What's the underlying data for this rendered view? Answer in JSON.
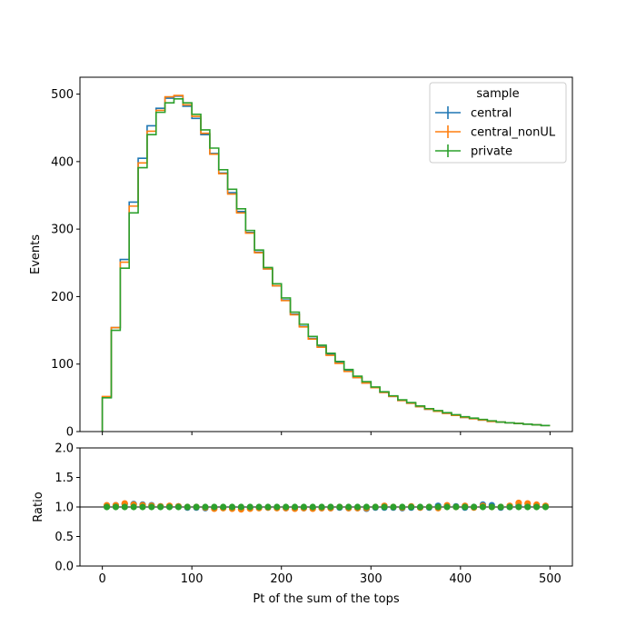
{
  "chart_data": [
    {
      "type": "step",
      "xlabel": "",
      "ylabel": "Events",
      "xlim": [
        -25,
        525
      ],
      "ylim": [
        0,
        525
      ],
      "x_ticks": [
        0,
        100,
        200,
        300,
        400,
        500
      ],
      "y_ticks": [
        0,
        100,
        200,
        300,
        400,
        500
      ],
      "x_tick_labels_shown": false,
      "bin_edges": [
        0,
        10,
        20,
        30,
        40,
        50,
        60,
        70,
        80,
        90,
        100,
        110,
        120,
        130,
        140,
        150,
        160,
        170,
        180,
        190,
        200,
        210,
        220,
        230,
        240,
        250,
        260,
        270,
        280,
        290,
        300,
        310,
        320,
        330,
        340,
        350,
        360,
        370,
        380,
        390,
        400,
        410,
        420,
        430,
        440,
        450,
        460,
        470,
        480,
        490,
        500
      ],
      "legend": {
        "title": "sample",
        "position": "top-right"
      },
      "series": [
        {
          "name": "central",
          "color": "#1f77b4",
          "values": [
            51,
            154,
            255,
            340,
            405,
            453,
            479,
            494,
            497,
            482,
            464,
            440,
            412,
            383,
            354,
            326,
            295,
            266,
            241,
            216,
            195,
            174,
            156,
            138,
            126,
            114,
            102,
            90,
            80,
            72,
            65,
            58,
            52,
            46,
            42,
            37,
            33,
            30,
            27,
            24,
            21,
            19,
            17,
            15,
            14,
            13,
            12,
            11,
            10,
            9
          ]
        },
        {
          "name": "central_nonUL",
          "color": "#ff7f0e",
          "values": [
            52,
            154,
            251,
            334,
            398,
            445,
            476,
            496,
            498,
            484,
            467,
            442,
            411,
            382,
            352,
            324,
            294,
            265,
            241,
            216,
            194,
            173,
            155,
            137,
            125,
            113,
            101,
            89,
            80,
            72,
            65,
            58,
            52,
            46,
            42,
            37,
            33,
            30,
            27,
            24,
            21,
            19,
            17,
            15,
            14,
            13,
            12,
            11,
            10,
            9
          ]
        },
        {
          "name": "private",
          "color": "#2ca02c",
          "values": [
            50,
            150,
            242,
            324,
            391,
            440,
            473,
            487,
            493,
            487,
            470,
            447,
            420,
            388,
            359,
            330,
            298,
            269,
            243,
            219,
            198,
            177,
            159,
            141,
            128,
            116,
            104,
            92,
            82,
            74,
            66,
            59,
            53,
            47,
            43,
            38,
            34,
            31,
            28,
            25,
            22,
            20,
            18,
            16,
            14,
            13,
            12,
            11,
            10,
            9
          ]
        }
      ]
    },
    {
      "type": "scatter",
      "xlabel": "Pt of the sum of the tops",
      "ylabel": "Ratio",
      "xlim": [
        -25,
        525
      ],
      "ylim": [
        0,
        2
      ],
      "x_ticks": [
        0,
        100,
        200,
        300,
        400,
        500
      ],
      "y_ticks": [
        0.0,
        0.5,
        1.0,
        1.5,
        2.0
      ],
      "y_tick_labels": [
        "0.0",
        "0.5",
        "1.0",
        "1.5",
        "2.0"
      ],
      "reference_line": 1.0,
      "x": [
        5,
        15,
        25,
        35,
        45,
        55,
        65,
        75,
        85,
        95,
        105,
        115,
        125,
        135,
        145,
        155,
        165,
        175,
        185,
        195,
        205,
        215,
        225,
        235,
        245,
        255,
        265,
        275,
        285,
        295,
        305,
        315,
        325,
        335,
        345,
        355,
        365,
        375,
        385,
        395,
        405,
        415,
        425,
        435,
        445,
        455,
        465,
        475,
        485,
        495
      ],
      "series": [
        {
          "name": "central",
          "color": "#1f77b4",
          "values": [
            1.02,
            1.03,
            1.05,
            1.05,
            1.04,
            1.03,
            1.01,
            1.01,
            1.01,
            0.99,
            0.99,
            0.98,
            0.98,
            0.99,
            0.99,
            0.99,
            0.99,
            0.99,
            0.99,
            0.99,
            0.98,
            0.98,
            0.98,
            0.98,
            0.98,
            0.98,
            0.99,
            0.98,
            0.98,
            0.97,
            0.99,
            0.99,
            0.99,
            0.98,
            0.99,
            0.99,
            0.99,
            1.02,
            1.02,
            1.01,
            0.99,
            1.0,
            1.04,
            1.03,
            0.99,
            1.0,
            1.02,
            1.01,
            1.02,
            1.01
          ]
        },
        {
          "name": "central_nonUL",
          "color": "#ff7f0e",
          "values": [
            1.03,
            1.03,
            1.06,
            1.04,
            1.03,
            1.02,
            1.01,
            1.02,
            1.01,
            1.0,
            1.0,
            0.99,
            0.97,
            0.98,
            0.97,
            0.96,
            0.97,
            0.98,
            0.99,
            0.98,
            0.98,
            0.97,
            0.98,
            0.97,
            0.98,
            0.98,
            1.0,
            0.98,
            0.98,
            0.98,
            1.0,
            1.02,
            1.0,
            0.99,
            1.01,
            0.99,
            1.0,
            0.98,
            1.03,
            1.0,
            1.02,
            0.99,
            1.02,
            1.0,
            1.0,
            1.02,
            1.07,
            1.06,
            1.04,
            1.02
          ]
        },
        {
          "name": "private",
          "color": "#2ca02c",
          "values": [
            1.0,
            1.0,
            1.0,
            1.0,
            1.0,
            1.0,
            1.0,
            1.0,
            1.0,
            1.0,
            1.0,
            1.0,
            1.0,
            1.0,
            1.0,
            1.0,
            1.0,
            1.0,
            1.0,
            1.0,
            1.0,
            1.0,
            1.0,
            1.0,
            1.0,
            1.0,
            1.0,
            1.0,
            1.0,
            1.0,
            1.0,
            1.0,
            1.0,
            1.0,
            1.0,
            1.0,
            1.0,
            1.0,
            1.0,
            1.0,
            1.0,
            1.0,
            1.0,
            1.0,
            1.0,
            1.0,
            1.0,
            1.0,
            1.0,
            1.0
          ]
        }
      ]
    }
  ]
}
